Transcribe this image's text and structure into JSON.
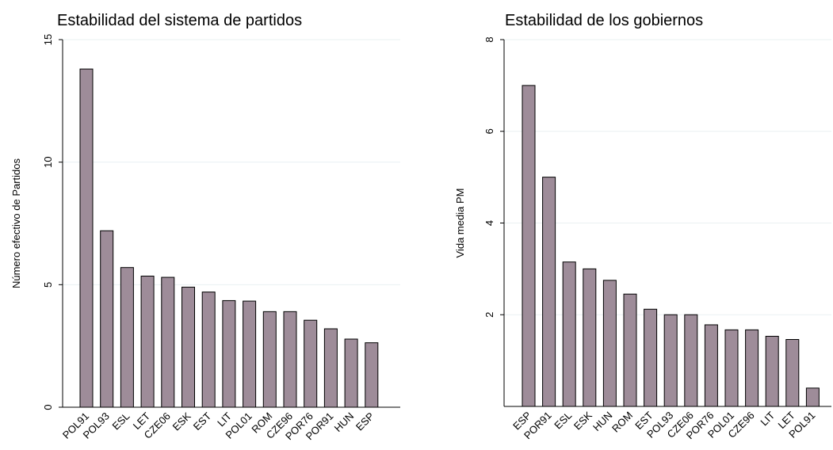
{
  "chart_data": [
    {
      "type": "bar",
      "title": "Estabilidad del sistema de partidos",
      "xlabel": "",
      "ylabel": "Número efectivo de Partidos",
      "ylim": [
        0,
        15
      ],
      "yticks": [
        0,
        5,
        10,
        15
      ],
      "grid": true,
      "bar_color": "#9e8c99",
      "categories": [
        "POL91",
        "POL93",
        "ESL",
        "LET",
        "CZE06",
        "ESK",
        "EST",
        "LIT",
        "POL01",
        "ROM",
        "CZE96",
        "POR76",
        "POR91",
        "HUN",
        "ESP"
      ],
      "values": [
        13.8,
        7.2,
        5.7,
        5.35,
        5.3,
        4.9,
        4.7,
        4.35,
        4.33,
        3.9,
        3.9,
        3.55,
        3.2,
        2.78,
        2.63
      ]
    },
    {
      "type": "bar",
      "title": "Estabilidad de los gobiernos",
      "xlabel": "",
      "ylabel": "Vida media PM",
      "ylim": [
        0,
        8
      ],
      "yticks": [
        2,
        4,
        6,
        8
      ],
      "grid": true,
      "bar_color": "#9e8c99",
      "categories": [
        "ESP",
        "POR91",
        "ESL",
        "ESK",
        "HUN",
        "ROM",
        "EST",
        "POL93",
        "CZE06",
        "POR76",
        "POL01",
        "CZE96",
        "LIT",
        "LET",
        "POL91"
      ],
      "values": [
        7.0,
        5.0,
        3.15,
        3.0,
        2.75,
        2.45,
        2.12,
        2.0,
        2.0,
        1.78,
        1.67,
        1.67,
        1.53,
        1.46,
        0.4
      ]
    }
  ]
}
